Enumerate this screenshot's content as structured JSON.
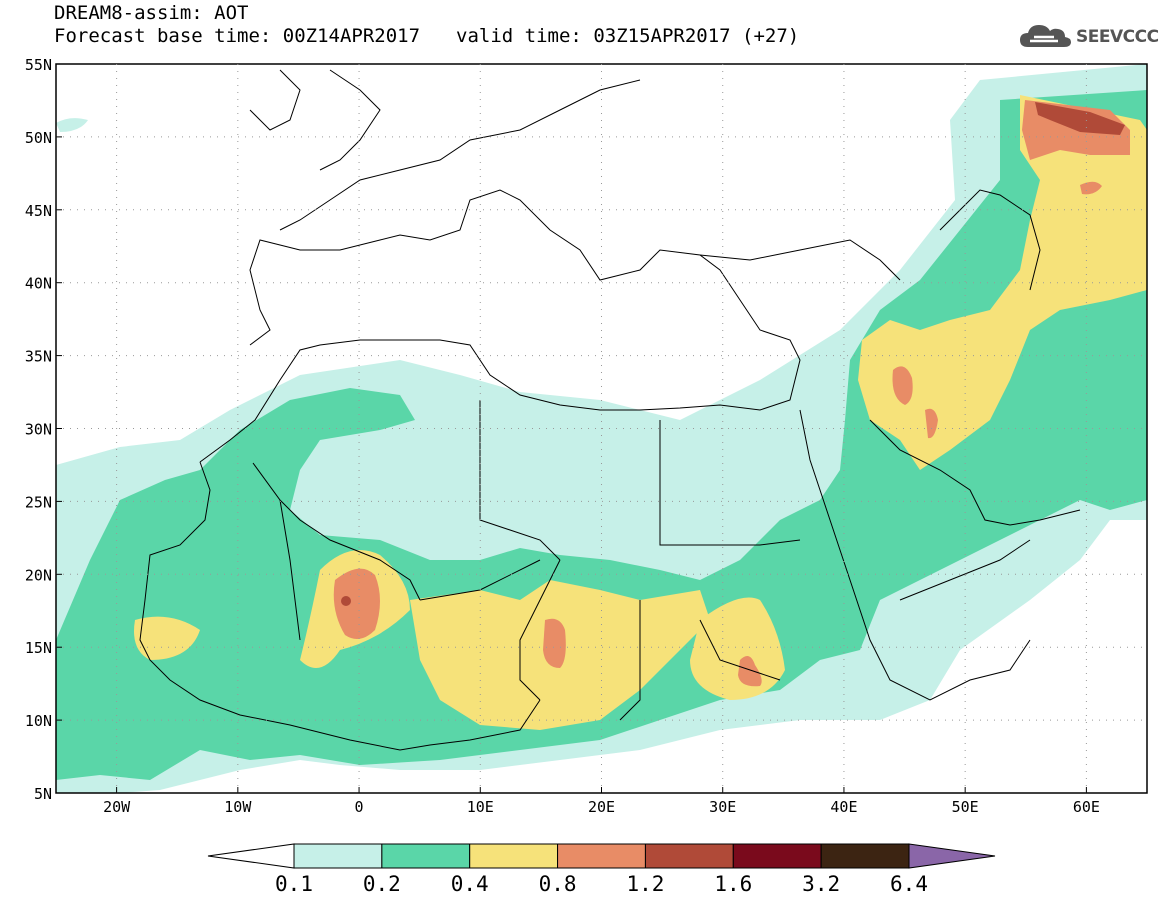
{
  "header": {
    "line1": "DREAM8-assim: AOT",
    "base_time": "Forecast base time: 00Z14APR2017",
    "valid_time": "valid time: 03Z15APR2017 (+27)"
  },
  "logo": {
    "text": "SEEVCCC",
    "icon": "cloud-icon"
  },
  "map": {
    "lat_labels": [
      "55N",
      "50N",
      "45N",
      "40N",
      "35N",
      "30N",
      "25N",
      "20N",
      "15N",
      "10N",
      "5N"
    ],
    "lon_labels": [
      "20W",
      "10W",
      "0",
      "10E",
      "20E",
      "30E",
      "40E",
      "50E",
      "60E"
    ]
  },
  "colorbar": {
    "colors": [
      "#ffffff",
      "#c6f0e8",
      "#5ad6a8",
      "#f6e27a",
      "#e88c66",
      "#b04a38",
      "#7a0a1c",
      "#3c2412",
      "#8a66a8"
    ],
    "tick_labels": [
      "0.1",
      "0.2",
      "0.4",
      "0.8",
      "1.2",
      "1.6",
      "3.2",
      "6.4"
    ]
  }
}
